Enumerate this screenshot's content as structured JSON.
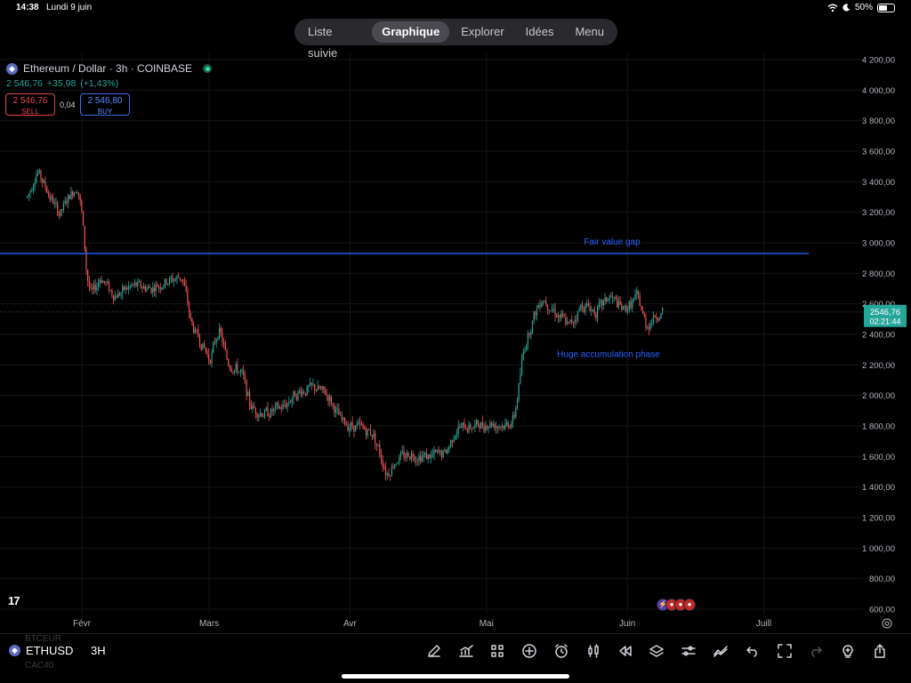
{
  "status": {
    "time": "14:38",
    "date": "Lundi 9 juin",
    "battery": "50%",
    "battery_level": 0.5
  },
  "nav": {
    "tabs": [
      "Liste suivie",
      "Graphique",
      "Explorer",
      "Idées",
      "Menu"
    ],
    "active": "Graphique"
  },
  "symbol": {
    "title": "Ethereum / Dollar · 3h · COINBASE",
    "badge": "◆"
  },
  "quote": {
    "last": "2 546,76",
    "change": "+35,98",
    "change_pct": "(+1,43%)"
  },
  "trade": {
    "sell_price": "2 546,76",
    "sell_label": "SELL",
    "spread": "0,04",
    "buy_price": "2 546,80",
    "buy_label": "BUY"
  },
  "price_tag": {
    "price": "2546,76",
    "countdown": "02:21:44"
  },
  "annotations": {
    "fvg": "Fair value gap",
    "accum": "Huge accumulation phase"
  },
  "y_axis": {
    "labels": [
      "4 200,00",
      "4 000,00",
      "3 800,00",
      "3 600,00",
      "3 400,00",
      "3 200,00",
      "3 000,00",
      "2 800,00",
      "2 600,00",
      "2 400,00",
      "2 200,00",
      "2 000,00",
      "1 800,00",
      "1 600,00",
      "1 400,00",
      "1 200,00",
      "1 000,00",
      "800,00",
      "600,00"
    ]
  },
  "x_axis": {
    "labels": [
      "Févr",
      "Mars",
      "Avr",
      "Mai",
      "Juin",
      "Juill"
    ]
  },
  "bottom": {
    "ghost_top": "BTCEUR",
    "symbol": "ETHUSD",
    "timeframe": "3H",
    "ghost_bottom": "CAC40"
  },
  "logo": "17",
  "colors": {
    "up": "#26a69a",
    "down": "#ef5350",
    "fvg_line": "#2962ff",
    "annotation": "#2962ff",
    "price_tag": "#26a69a"
  },
  "chart_data": {
    "type": "candlestick",
    "title": "Ethereum / Dollar · 3h · COINBASE",
    "ylim": [
      600,
      4200
    ],
    "y_ticks": [
      4200,
      4000,
      3800,
      3600,
      3400,
      3200,
      3000,
      2800,
      2600,
      2400,
      2200,
      2000,
      1800,
      1600,
      1400,
      1200,
      1000,
      800,
      600
    ],
    "x_ticks": [
      "Févr",
      "Mars",
      "Avr",
      "Mai",
      "Juin",
      "Juill"
    ],
    "horizontal_line": {
      "label": "Fair value gap",
      "value": 2930
    },
    "last_price": 2546.76,
    "path_anchors": [
      [
        "Janv 20",
        3300
      ],
      [
        "Janv 22",
        3480
      ],
      [
        "Janv 24",
        3350
      ],
      [
        "Janv 27",
        3180
      ],
      [
        "Janv 29",
        3300
      ],
      [
        "Janv 31",
        3380
      ],
      [
        "Févr 1",
        3150
      ],
      [
        "Févr 2",
        2750
      ],
      [
        "Févr 3",
        2650
      ],
      [
        "Févr 5",
        2780
      ],
      [
        "Févr 8",
        2650
      ],
      [
        "Févr 12",
        2720
      ],
      [
        "Févr 16",
        2700
      ],
      [
        "Févr 20",
        2750
      ],
      [
        "Févr 23",
        2780
      ],
      [
        "Févr 25",
        2450
      ],
      [
        "Févr 27",
        2350
      ],
      [
        "Mars 1",
        2230
      ],
      [
        "Mars 3",
        2450
      ],
      [
        "Mars 5",
        2200
      ],
      [
        "Mars 8",
        2150
      ],
      [
        "Mars 10",
        1920
      ],
      [
        "Mars 13",
        1880
      ],
      [
        "Mars 17",
        1920
      ],
      [
        "Mars 20",
        2020
      ],
      [
        "Mars 24",
        2050
      ],
      [
        "Mars 27",
        2000
      ],
      [
        "Mars 30",
        1820
      ],
      [
        "Avr 2",
        1800
      ],
      [
        "Avr 6",
        1750
      ],
      [
        "Avr 9",
        1480
      ],
      [
        "Avr 11",
        1580
      ],
      [
        "Avr 14",
        1620
      ],
      [
        "Avr 18",
        1600
      ],
      [
        "Avr 22",
        1620
      ],
      [
        "Avr 24",
        1780
      ],
      [
        "Avr 28",
        1800
      ],
      [
        "Mai 2",
        1820
      ],
      [
        "Mai 5",
        1800
      ],
      [
        "Mai 7",
        1850
      ],
      [
        "Mai 9",
        2300
      ],
      [
        "Mai 11",
        2500
      ],
      [
        "Mai 13",
        2650
      ],
      [
        "Mai 16",
        2550
      ],
      [
        "Mai 19",
        2450
      ],
      [
        "Mai 22",
        2600
      ],
      [
        "Mai 25",
        2550
      ],
      [
        "Mai 28",
        2650
      ],
      [
        "Mai 31",
        2550
      ],
      [
        "Juin 3",
        2650
      ],
      [
        "Juin 5",
        2450
      ],
      [
        "Juin 7",
        2520
      ],
      [
        "Juin 9",
        2546.76
      ]
    ]
  }
}
